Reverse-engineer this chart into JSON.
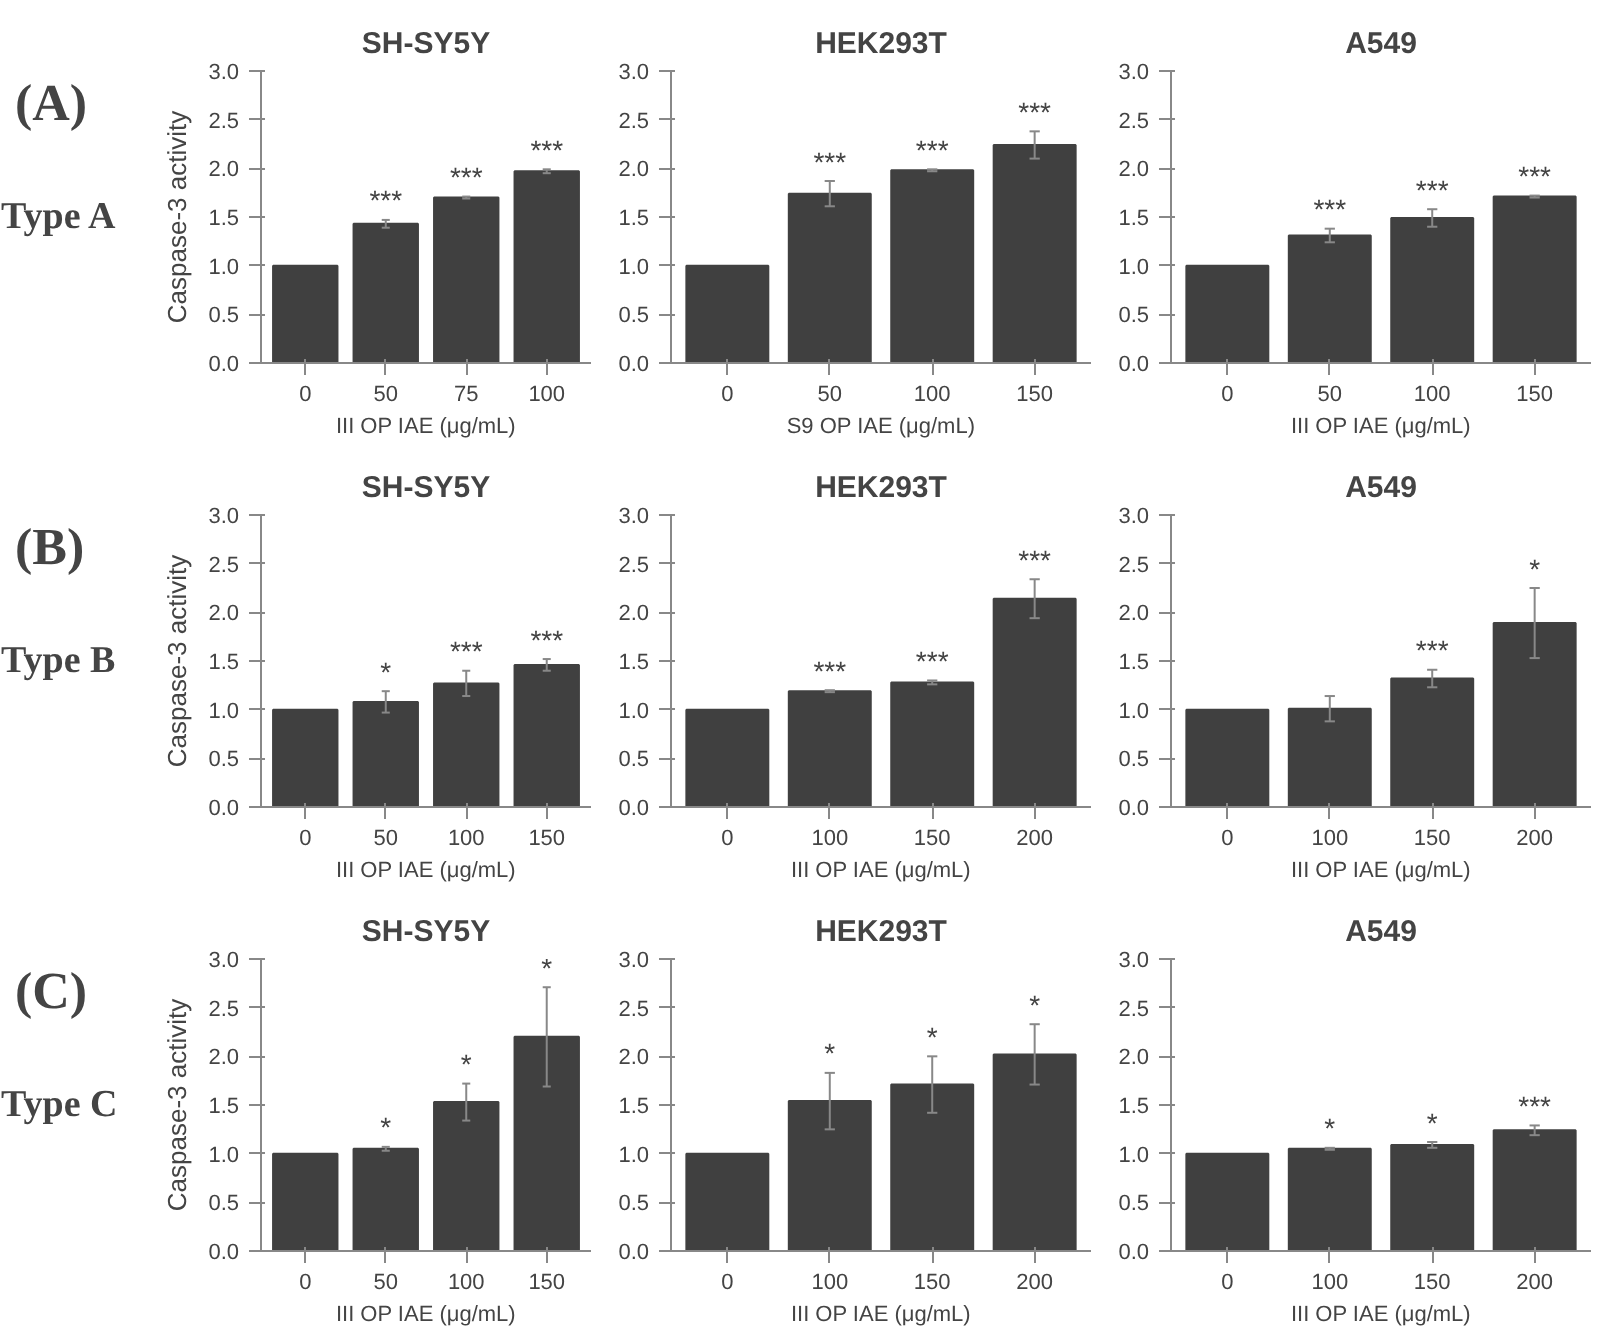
{
  "chart_data": [
    {
      "type": "bar",
      "title": "SH-SY5Y",
      "ylabel": "Caspase-3 activity",
      "xlabel": "III OP IAE (μg/mL)",
      "categories": [
        "0",
        "50",
        "75",
        "100"
      ],
      "values": [
        1.0,
        1.43,
        1.7,
        1.97
      ],
      "errors": [
        null,
        0.04,
        0.01,
        0.02
      ],
      "color": "#404040",
      "ylim": [
        0,
        3
      ],
      "yticks": [
        {
          "value": 0,
          "label": "0.0"
        },
        0.5,
        {
          "value": 1,
          "label": "1.0"
        },
        1.5,
        {
          "value": 2,
          "label": "2.0"
        },
        2.5,
        {
          "value": 3,
          "label": "3.0"
        }
      ],
      "grid": false,
      "annotations": [
        "(A)",
        "Type A",
        "***",
        "***",
        "***"
      ]
    },
    {
      "type": "bar",
      "title": "HEK293T",
      "xlabel": "S9 OP IAE (μg/mL)",
      "categories": [
        "0",
        "50",
        "100",
        "150"
      ],
      "values": [
        1.0,
        1.74,
        1.98,
        2.24
      ],
      "errors": [
        null,
        0.13,
        0.01,
        0.14
      ],
      "color": "#404040",
      "ylim": [
        0,
        3
      ],
      "yticks": [
        {
          "value": 0,
          "label": "0.0"
        },
        0.5,
        {
          "value": 1,
          "label": "1.0"
        },
        1.5,
        {
          "value": 2,
          "label": "2.0"
        },
        2.5,
        {
          "value": 3,
          "label": "3.0"
        }
      ],
      "grid": false,
      "annotations": [
        "***",
        "***",
        "***"
      ]
    },
    {
      "type": "bar",
      "title": "A549",
      "xlabel": "III OP IAE (μg/mL)",
      "categories": [
        "0",
        "50",
        "100",
        "150"
      ],
      "values": [
        1.0,
        1.31,
        1.49,
        1.71
      ],
      "errors": [
        null,
        0.07,
        0.09,
        0.01
      ],
      "color": "#404040",
      "ylim": [
        0,
        3
      ],
      "yticks": [
        {
          "value": 0,
          "label": "0.0"
        },
        0.5,
        {
          "value": 1,
          "label": "1.0"
        },
        1.5,
        {
          "value": 2,
          "label": "2.0"
        },
        2.5,
        {
          "value": 3,
          "label": "3.0"
        }
      ],
      "grid": false,
      "annotations": [
        "***",
        "***",
        "***"
      ]
    },
    {
      "type": "bar",
      "title": "SH-SY5Y",
      "ylabel": "Caspase-3 activity",
      "xlabel": "III OP IAE (μg/mL)",
      "categories": [
        "0",
        "50",
        "100",
        "150"
      ],
      "values": [
        1.0,
        1.08,
        1.27,
        1.46
      ],
      "errors": [
        null,
        0.11,
        0.13,
        0.06
      ],
      "color": "#404040",
      "ylim": [
        0,
        3
      ],
      "yticks": [
        {
          "value": 0,
          "label": "0.0"
        },
        0.5,
        {
          "value": 1,
          "label": "1.0"
        },
        1.5,
        {
          "value": 2,
          "label": "2.0"
        },
        2.5,
        {
          "value": 3,
          "label": "3.0"
        }
      ],
      "grid": false,
      "annotations": [
        "(B)",
        "Type B",
        "*",
        "***",
        "***"
      ]
    },
    {
      "type": "bar",
      "title": "HEK293T",
      "xlabel": "III OP IAE (μg/mL)",
      "categories": [
        "0",
        "100",
        "150",
        "200"
      ],
      "values": [
        1.0,
        1.19,
        1.28,
        2.14
      ],
      "errors": [
        null,
        0.01,
        0.02,
        0.2
      ],
      "color": "#404040",
      "ylim": [
        0,
        3
      ],
      "yticks": [
        {
          "value": 0,
          "label": "0.0"
        },
        0.5,
        {
          "value": 1,
          "label": "1.0"
        },
        1.5,
        {
          "value": 2,
          "label": "2.0"
        },
        2.5,
        {
          "value": 3,
          "label": "3.0"
        }
      ],
      "grid": false,
      "annotations": [
        "***",
        "***",
        "***"
      ]
    },
    {
      "type": "bar",
      "title": "A549",
      "xlabel": "III OP IAE (μg/mL)",
      "categories": [
        "0",
        "100",
        "150",
        "200"
      ],
      "values": [
        1.0,
        1.01,
        1.32,
        1.89
      ],
      "errors": [
        null,
        0.13,
        0.09,
        0.36
      ],
      "color": "#404040",
      "ylim": [
        0,
        3
      ],
      "yticks": [
        {
          "value": 0,
          "label": "0.0"
        },
        0.5,
        {
          "value": 1,
          "label": "1.0"
        },
        1.5,
        {
          "value": 2,
          "label": "2.0"
        },
        2.5,
        {
          "value": 3,
          "label": "3.0"
        }
      ],
      "grid": false,
      "annotations": [
        "***",
        "*"
      ]
    },
    {
      "type": "bar",
      "title": "SH-SY5Y",
      "ylabel": "Caspase-3 activity",
      "xlabel": "III OP IAE (μg/mL)",
      "categories": [
        "0",
        "50",
        "100",
        "150"
      ],
      "values": [
        1.0,
        1.05,
        1.53,
        2.2
      ],
      "errors": [
        null,
        0.02,
        0.19,
        0.51
      ],
      "color": "#404040",
      "ylim": [
        0,
        3
      ],
      "yticks": [
        {
          "value": 0,
          "label": "0.0"
        },
        0.5,
        {
          "value": 1,
          "label": "1.0"
        },
        1.5,
        {
          "value": 2,
          "label": "2.0"
        },
        2.5,
        {
          "value": 3,
          "label": "3.0"
        }
      ],
      "grid": false,
      "annotations": [
        "(C)",
        "Type C",
        "*",
        "*",
        "*"
      ]
    },
    {
      "type": "bar",
      "title": "HEK293T",
      "xlabel": "III OP IAE (μg/mL)",
      "categories": [
        "0",
        "100",
        "150",
        "200"
      ],
      "values": [
        1.0,
        1.54,
        1.71,
        2.02
      ],
      "errors": [
        null,
        0.29,
        0.29,
        0.31
      ],
      "color": "#404040",
      "ylim": [
        0,
        3
      ],
      "yticks": [
        {
          "value": 0,
          "label": "0.0"
        },
        0.5,
        {
          "value": 1,
          "label": "1.0"
        },
        1.5,
        {
          "value": 2,
          "label": "2.0"
        },
        2.5,
        {
          "value": 3,
          "label": "3.0"
        }
      ],
      "grid": false,
      "annotations": [
        "*",
        "*",
        "*"
      ]
    },
    {
      "type": "bar",
      "title": "A549",
      "xlabel": "III OP IAE (μg/mL)",
      "categories": [
        "0",
        "100",
        "150",
        "200"
      ],
      "values": [
        1.0,
        1.05,
        1.09,
        1.24
      ],
      "errors": [
        null,
        0.01,
        0.03,
        0.05
      ],
      "color": "#404040",
      "ylim": [
        0,
        3
      ],
      "yticks": [
        {
          "value": 0,
          "label": "0.0"
        },
        0.5,
        {
          "value": 1,
          "label": "1.0"
        },
        1.5,
        {
          "value": 2,
          "label": "2.0"
        },
        2.5,
        {
          "value": 3,
          "label": "3.0"
        }
      ],
      "grid": false,
      "annotations": [
        "*",
        "*",
        "***"
      ]
    }
  ]
}
